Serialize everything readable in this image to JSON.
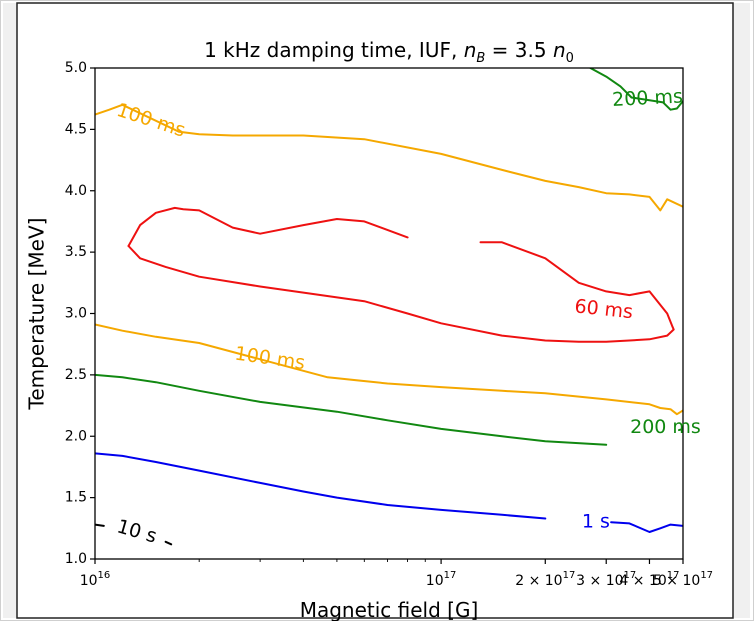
{
  "chart_data": {
    "type": "line",
    "title_parts": [
      "1 kHz damping time, IUF, ",
      "n",
      "B",
      " = 3.5 ",
      "n",
      "0"
    ],
    "xlabel": "Magnetic field [G]",
    "ylabel": "Temperature [MeV]",
    "xscale": "log",
    "xlim": [
      1e+16,
      5e+17
    ],
    "ylim": [
      1.0,
      5.0
    ],
    "xticks": [
      {
        "value": 1e+16,
        "mant": "",
        "base": "10",
        "exp": "16"
      },
      {
        "value": 1e+17,
        "mant": "",
        "base": "10",
        "exp": "17"
      },
      {
        "value": 2e+17,
        "mant": "2 × ",
        "base": "10",
        "exp": "17"
      },
      {
        "value": 3e+17,
        "mant": "3 × ",
        "base": "10",
        "exp": "17"
      },
      {
        "value": 4e+17,
        "mant": "4 × ",
        "base": "10",
        "exp": "17"
      },
      {
        "value": 5e+17,
        "mant": "5 × ",
        "base": "10",
        "exp": "17"
      }
    ],
    "yticks": [
      "1.0",
      "1.5",
      "2.0",
      "2.5",
      "3.0",
      "3.5",
      "4.0",
      "4.5",
      "5.0"
    ],
    "grid": false,
    "series": [
      {
        "name": "10 s",
        "color": "#000000",
        "label_at": [
          1.32e+16,
          1.22
        ],
        "label_angle": 16,
        "gap": [
          1.09e+16,
          1.6e+16
        ],
        "x": [
          1e+16,
          1.06e+16,
          1.12e+16,
          1.2e+16,
          1.3e+16,
          1.4e+16,
          1.5e+16,
          1.6e+16,
          1.66e+16
        ],
        "y": [
          1.28,
          1.27,
          1.26,
          1.245,
          1.225,
          1.205,
          1.18,
          1.14,
          1.12
        ]
      },
      {
        "name": "1 s",
        "color": "#0000ee",
        "label_at": [
          2.8e+17,
          1.3
        ],
        "label_angle": 0,
        "gap": [
          2.47e+17,
          3.05e+17
        ],
        "x": [
          1e+16,
          1.2e+16,
          1.5e+16,
          2e+16,
          3e+16,
          4e+16,
          5e+16,
          7e+16,
          1e+17,
          1.5e+17,
          2e+17,
          2.5e+17,
          3.1e+17,
          3.5e+17,
          4e+17,
          4.3e+17,
          4.6e+17,
          5e+17
        ],
        "y": [
          1.86,
          1.84,
          1.79,
          1.72,
          1.62,
          1.55,
          1.5,
          1.44,
          1.4,
          1.36,
          1.33,
          1.31,
          1.3,
          1.29,
          1.22,
          1.25,
          1.28,
          1.27
        ]
      },
      {
        "name": "200 ms",
        "color": "#118811",
        "label_at": [
          4.45e+17,
          2.07
        ],
        "label_angle": 0,
        "gap": [
          3.92e+17,
          4.87e+17
        ],
        "x": [
          1e+16,
          1.2e+16,
          1.5e+16,
          2e+16,
          3e+16,
          5e+16,
          7e+16,
          1e+17,
          1.5e+17,
          2e+17,
          3e+17,
          4e+17,
          4.87e+17,
          5e+17
        ],
        "y": [
          2.5,
          2.48,
          2.44,
          2.37,
          2.28,
          2.2,
          2.13,
          2.06,
          2.0,
          1.96,
          1.93,
          1.92,
          2.05,
          2.06
        ]
      },
      {
        "name": "200 ms",
        "color": "#118811",
        "label_at": [
          3.95e+17,
          4.75
        ],
        "label_angle": -3,
        "gap": [
          3.55e+17,
          4.38e+17
        ],
        "x": [
          2.7e+17,
          3e+17,
          3.3e+17,
          3.55e+17,
          4.38e+17,
          4.6e+17,
          4.8e+17,
          5e+17
        ],
        "y": [
          5.0,
          4.93,
          4.85,
          4.76,
          4.72,
          4.66,
          4.67,
          4.73
        ]
      },
      {
        "name": "100 ms",
        "color": "#f5a800",
        "label_at": [
          1.45e+16,
          4.57
        ],
        "label_angle": 18,
        "gap": [
          1.21e+16,
          1.75e+16
        ],
        "x": [
          1e+16,
          1.1e+16,
          1.2e+16,
          1.75e+16,
          2e+16,
          2.5e+16,
          3e+16,
          4e+16,
          6e+16,
          1e+17,
          1.5e+17,
          2e+17,
          2.5e+17,
          3e+17,
          3.5e+17,
          4e+17,
          4.3e+17,
          4.5e+17,
          5e+17
        ],
        "y": [
          4.62,
          4.66,
          4.7,
          4.48,
          4.46,
          4.45,
          4.45,
          4.45,
          4.42,
          4.3,
          4.17,
          4.08,
          4.03,
          3.98,
          3.97,
          3.95,
          3.84,
          3.93,
          3.87
        ]
      },
      {
        "name": "100 ms",
        "color": "#f5a800",
        "label_at": [
          3.2e+16,
          2.63
        ],
        "label_angle": 8,
        "gap": [
          2.08e+16,
          4.7e+16
        ],
        "x": [
          1e+16,
          1.2e+16,
          1.5e+16,
          2e+16,
          4.7e+16,
          7e+16,
          1e+17,
          1.5e+17,
          2e+17,
          3e+17,
          4e+17,
          4.3e+17,
          4.6e+17,
          4.8e+17,
          5e+17
        ],
        "y": [
          2.91,
          2.86,
          2.81,
          2.76,
          2.48,
          2.43,
          2.4,
          2.37,
          2.35,
          2.3,
          2.26,
          2.23,
          2.22,
          2.18,
          2.21
        ]
      },
      {
        "name": "60 ms",
        "color": "#ee1111",
        "label_at": [
          2.95e+17,
          3.03
        ],
        "label_angle": 6,
        "gap_index": 12,
        "closed": true,
        "x": [
          1.25e+16,
          1.35e+16,
          1.5e+16,
          1.7e+16,
          1.8e+16,
          2e+16,
          2.5e+16,
          3e+16,
          4e+16,
          5e+16,
          6e+16,
          8e+16,
          1e+17,
          1.3e+17,
          1.5e+17,
          2e+17,
          2.5e+17,
          3e+17,
          3.5e+17,
          4e+17,
          4.5e+17,
          4.65e+17,
          4.7e+17,
          4.5e+17,
          4e+17,
          3.5e+17,
          3e+17,
          2.5e+17,
          2e+17,
          1.5e+17,
          1e+17,
          8e+16,
          6e+16,
          4e+16,
          3e+16,
          2e+16,
          1.6e+16,
          1.35e+16,
          1.25e+16
        ],
        "y": [
          3.55,
          3.72,
          3.82,
          3.86,
          3.85,
          3.84,
          3.7,
          3.65,
          3.72,
          3.77,
          3.75,
          3.62,
          3.58,
          3.58,
          3.58,
          3.45,
          3.25,
          3.18,
          3.15,
          3.18,
          3.0,
          2.9,
          2.87,
          2.82,
          2.79,
          2.78,
          2.77,
          2.77,
          2.78,
          2.82,
          2.92,
          3.0,
          3.1,
          3.17,
          3.22,
          3.3,
          3.38,
          3.45,
          3.55
        ]
      }
    ]
  }
}
